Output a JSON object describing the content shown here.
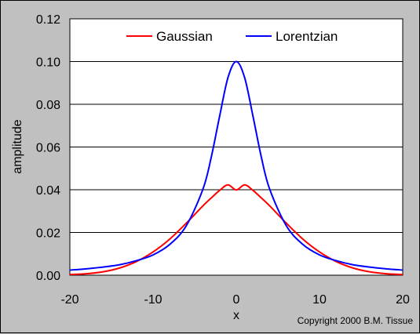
{
  "chart_data": {
    "type": "line",
    "xlabel": "x",
    "ylabel": "amplitude",
    "xlim": [
      -20,
      20
    ],
    "ylim": [
      0,
      0.12
    ],
    "xticks": [
      "-20",
      "-10",
      "0",
      "10",
      "20"
    ],
    "xtick_values": [
      -20,
      -10,
      0,
      10,
      20
    ],
    "yticks": [
      "0.00",
      "0.02",
      "0.04",
      "0.06",
      "0.08",
      "0.10",
      "0.12"
    ],
    "ytick_values": [
      0,
      0.02,
      0.04,
      0.06,
      0.08,
      0.1,
      0.12
    ],
    "grid": "horizontal",
    "legend_position": "top",
    "x": [
      -20,
      -18,
      -16,
      -14,
      -12,
      -10,
      -8,
      -6,
      -4,
      -3,
      -2,
      -1,
      0,
      1,
      2,
      3,
      4,
      6,
      8,
      10,
      12,
      14,
      16,
      18,
      20
    ],
    "series": [
      {
        "name": "Gaussian",
        "color": "#ff0000",
        "values": [
          0.0003,
          0.0007,
          0.0016,
          0.0034,
          0.0064,
          0.0109,
          0.0169,
          0.0244,
          0.0325,
          0.0362,
          0.0397,
          0.0423,
          0.0399,
          0.0423,
          0.0397,
          0.0362,
          0.0325,
          0.0244,
          0.0169,
          0.0109,
          0.0064,
          0.0034,
          0.0016,
          0.0007,
          0.0003
        ]
      },
      {
        "name": "Lorentzian",
        "color": "#0000ff",
        "values": [
          0.0024,
          0.003,
          0.0038,
          0.0049,
          0.0068,
          0.0095,
          0.0144,
          0.0232,
          0.0404,
          0.0554,
          0.0745,
          0.0925,
          0.1,
          0.0925,
          0.0745,
          0.0554,
          0.0404,
          0.0232,
          0.0144,
          0.0095,
          0.0068,
          0.0049,
          0.0038,
          0.003,
          0.0024
        ]
      }
    ],
    "annotation": "Copyright 2000 B.M. Tissue"
  }
}
